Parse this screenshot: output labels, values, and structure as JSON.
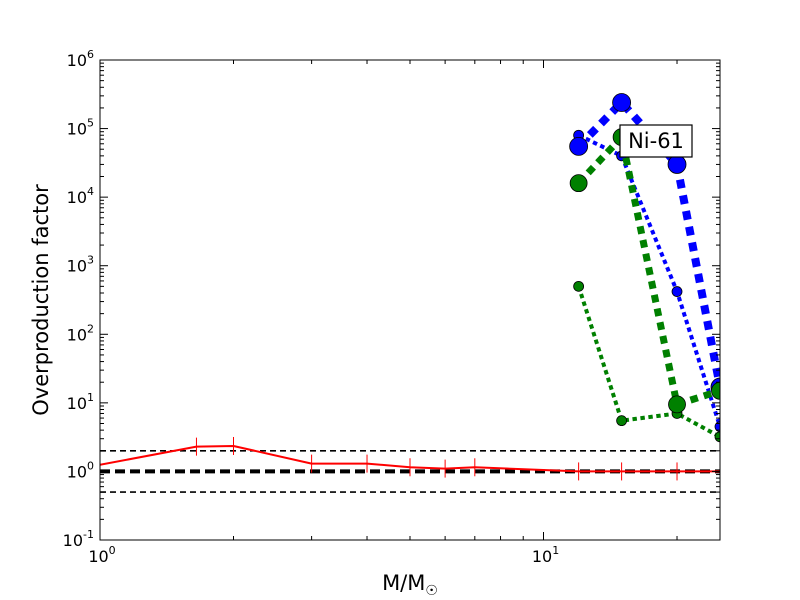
{
  "chart_data": {
    "type": "line",
    "xlabel": "M/M",
    "xlabel_sub": "☉",
    "ylabel": "Overproduction factor",
    "xscale": "log",
    "yscale": "log",
    "xlim": [
      1,
      25
    ],
    "ylim": [
      0.1,
      1000000
    ],
    "xticks": [
      {
        "value": 1,
        "base": "10",
        "exp": "0"
      },
      {
        "value": 10,
        "base": "10",
        "exp": "1"
      }
    ],
    "yticks": [
      {
        "value": 0.1,
        "base": "10",
        "exp": "-1"
      },
      {
        "value": 1,
        "base": "10",
        "exp": "0"
      },
      {
        "value": 10,
        "base": "10",
        "exp": "1"
      },
      {
        "value": 100,
        "base": "10",
        "exp": "2"
      },
      {
        "value": 1000,
        "base": "10",
        "exp": "3"
      },
      {
        "value": 10000,
        "base": "10",
        "exp": "4"
      },
      {
        "value": 100000,
        "base": "10",
        "exp": "5"
      },
      {
        "value": 1000000,
        "base": "10",
        "exp": "6"
      }
    ],
    "reference_lines": [
      {
        "y": 2,
        "style": "thin-dashed",
        "color": "#000000"
      },
      {
        "y": 1,
        "style": "thick-dashed",
        "color": "#000000"
      },
      {
        "y": 0.5,
        "style": "thin-dashed",
        "color": "#000000"
      }
    ],
    "annotation": "Ni-61",
    "series": [
      {
        "color": "#ff0000",
        "style": "solid",
        "width": 2,
        "marker": "vtick",
        "x": [
          1,
          1.65,
          2,
          3,
          4,
          5,
          6,
          7,
          12,
          15,
          20,
          25
        ],
        "y": [
          1.25,
          2.3,
          2.35,
          1.3,
          1.3,
          1.15,
          1.1,
          1.15,
          1.0,
          1.0,
          1.0,
          1.0
        ]
      },
      {
        "color": "#0000ff",
        "style": "dotted",
        "width": 4,
        "marker": "circle",
        "marker_r": 5,
        "x": [
          12,
          15,
          20,
          25
        ],
        "y": [
          80000,
          40000,
          420,
          4.5
        ]
      },
      {
        "color": "#0000ff",
        "style": "dotted",
        "width": 8,
        "marker": "circle",
        "marker_r": 9,
        "x": [
          12,
          15,
          20,
          25
        ],
        "y": [
          55000,
          240000,
          30000,
          17
        ]
      },
      {
        "color": "#008000",
        "style": "dotted",
        "width": 4,
        "marker": "circle",
        "marker_r": 5,
        "x": [
          12,
          15,
          20,
          25
        ],
        "y": [
          500,
          5.5,
          7,
          3.2
        ]
      },
      {
        "color": "#008000",
        "style": "dotted",
        "width": 7,
        "marker": "circle",
        "marker_r": 8.5,
        "x": [
          12,
          15,
          20,
          25
        ],
        "y": [
          16000,
          75000,
          9.5,
          15
        ]
      }
    ]
  }
}
